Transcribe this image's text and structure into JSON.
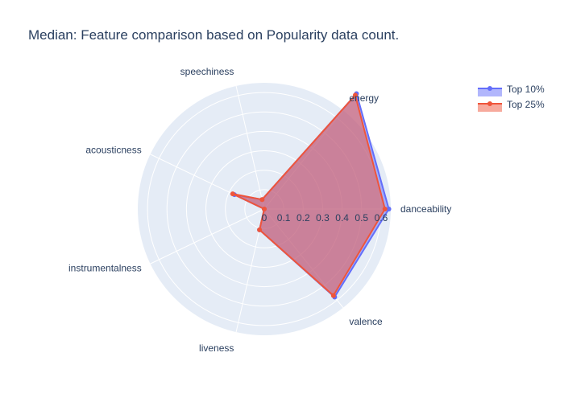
{
  "chart_data": {
    "type": "radar",
    "title": "Median: Feature comparison based on Popularity data count.",
    "axes": [
      "danceability",
      "energy",
      "speechiness",
      "acousticness",
      "instrumentalness",
      "liveness",
      "valence"
    ],
    "radial_ticks": [
      "0",
      "0.1",
      "0.2",
      "0.3",
      "0.4",
      "0.5",
      "0.6"
    ],
    "radial_range": [
      0,
      0.65
    ],
    "grid": true,
    "legend_position": "top-right",
    "series": [
      {
        "name": "Top 10%",
        "color": "#636efa",
        "values": [
          0.64,
          0.76,
          0.05,
          0.17,
          0.0,
          0.11,
          0.58
        ]
      },
      {
        "name": "Top 25%",
        "color": "#ef553b",
        "values": [
          0.62,
          0.75,
          0.05,
          0.18,
          0.0,
          0.11,
          0.57
        ]
      }
    ]
  }
}
